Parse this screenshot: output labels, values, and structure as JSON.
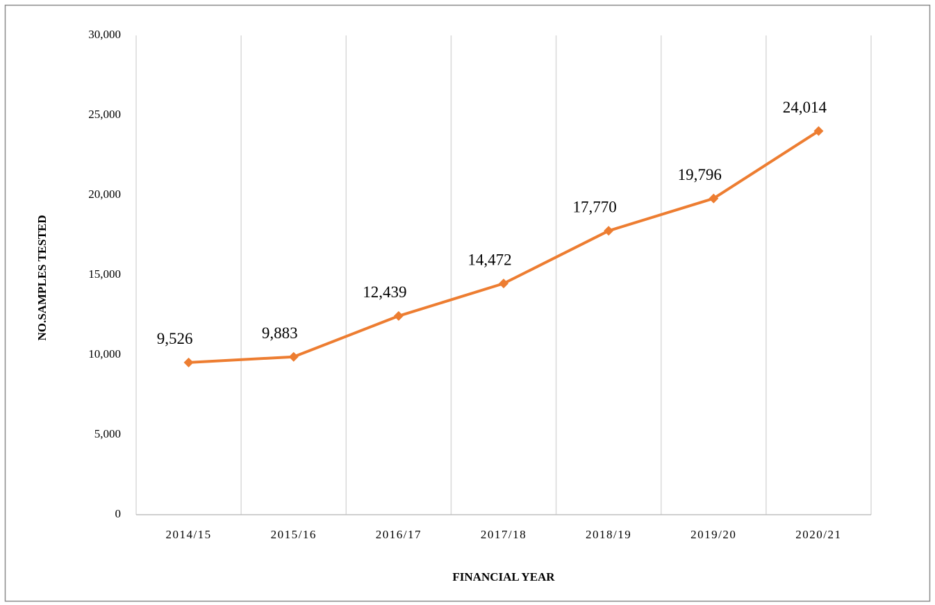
{
  "chart_data": {
    "type": "line",
    "x_label": "FINANCIAL YEAR",
    "y_label": "NO.SAMPLES TESTED",
    "categories": [
      "2014/15",
      "2015/16",
      "2016/17",
      "2017/18",
      "2018/19",
      "2019/20",
      "2020/21"
    ],
    "series": [
      {
        "name": "Samples tested",
        "color": "#ed7d31",
        "values": [
          9526,
          9883,
          12439,
          14472,
          17770,
          19796,
          24014
        ],
        "value_labels": [
          "9,526",
          "9,883",
          "12,439",
          "14,472",
          "17,770",
          "19,796",
          "24,014"
        ]
      }
    ],
    "ylim": [
      0,
      30000
    ],
    "yticks": [
      0,
      {
        "value": 5000,
        "label": "5,000"
      },
      {
        "value": 10000,
        "label": "10,000"
      },
      {
        "value": 15000,
        "label": "15,000"
      },
      {
        "value": 20000,
        "label": "20,000"
      },
      {
        "value": 25000,
        "label": "25,000"
      },
      {
        "value": 30000,
        "label": "30,000"
      }
    ]
  }
}
